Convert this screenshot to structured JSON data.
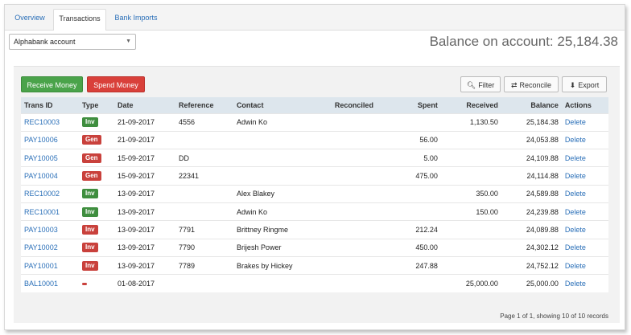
{
  "tabs": [
    {
      "label": "Overview",
      "active": false
    },
    {
      "label": "Transactions",
      "active": true
    },
    {
      "label": "Bank Imports",
      "active": false
    }
  ],
  "account_select": {
    "value": "Alphabank account"
  },
  "balance_text": "Balance on account: 25,184.38",
  "buttons": {
    "receive": "Receive Money",
    "spend": "Spend Money",
    "filter": "Filter",
    "reconcile": "Reconcile",
    "export": "Export"
  },
  "table": {
    "headers": {
      "trans_id": "Trans ID",
      "type": "Type",
      "date": "Date",
      "reference": "Reference",
      "contact": "Contact",
      "reconciled": "Reconciled",
      "spent": "Spent",
      "received": "Received",
      "balance": "Balance",
      "actions": "Actions"
    },
    "rows": [
      {
        "id": "REC10003",
        "type": "Inv",
        "type_class": "inv",
        "date": "21-09-2017",
        "reference": "4556",
        "contact": "Adwin Ko",
        "reconciled": "",
        "spent": "",
        "received": "1,130.50",
        "balance": "25,184.38",
        "action": "Delete"
      },
      {
        "id": "PAY10006",
        "type": "Gen",
        "type_class": "gen",
        "date": "21-09-2017",
        "reference": "",
        "contact": "",
        "reconciled": "",
        "spent": "56.00",
        "received": "",
        "balance": "24,053.88",
        "action": "Delete"
      },
      {
        "id": "PAY10005",
        "type": "Gen",
        "type_class": "gen",
        "date": "15-09-2017",
        "reference": "DD",
        "contact": "",
        "reconciled": "",
        "spent": "5.00",
        "received": "",
        "balance": "24,109.88",
        "action": "Delete"
      },
      {
        "id": "PAY10004",
        "type": "Gen",
        "type_class": "gen",
        "date": "15-09-2017",
        "reference": "22341",
        "contact": "",
        "reconciled": "",
        "spent": "475.00",
        "received": "",
        "balance": "24,114.88",
        "action": "Delete"
      },
      {
        "id": "REC10002",
        "type": "Inv",
        "type_class": "inv",
        "date": "13-09-2017",
        "reference": "",
        "contact": "Alex Blakey",
        "reconciled": "",
        "spent": "",
        "received": "350.00",
        "balance": "24,589.88",
        "action": "Delete"
      },
      {
        "id": "REC10001",
        "type": "Inv",
        "type_class": "inv",
        "date": "13-09-2017",
        "reference": "",
        "contact": "Adwin Ko",
        "reconciled": "",
        "spent": "",
        "received": "150.00",
        "balance": "24,239.88",
        "action": "Delete"
      },
      {
        "id": "PAY10003",
        "type": "Inv",
        "type_class": "gen",
        "date": "13-09-2017",
        "reference": "7791",
        "contact": "Brittney Ringme",
        "reconciled": "",
        "spent": "212.24",
        "received": "",
        "balance": "24,089.88",
        "action": "Delete"
      },
      {
        "id": "PAY10002",
        "type": "Inv",
        "type_class": "gen",
        "date": "13-09-2017",
        "reference": "7790",
        "contact": "Brijesh Power",
        "reconciled": "",
        "spent": "450.00",
        "received": "",
        "balance": "24,302.12",
        "action": "Delete"
      },
      {
        "id": "PAY10001",
        "type": "Inv",
        "type_class": "gen",
        "date": "13-09-2017",
        "reference": "7789",
        "contact": "Brakes by Hickey",
        "reconciled": "",
        "spent": "247.88",
        "received": "",
        "balance": "24,752.12",
        "action": "Delete"
      },
      {
        "id": "BAL10001",
        "type": "",
        "type_class": "bal",
        "date": "01-08-2017",
        "reference": "",
        "contact": "",
        "reconciled": "",
        "spent": "",
        "received": "25,000.00",
        "balance": "25,000.00",
        "action": "Delete"
      }
    ]
  },
  "pagination_text": "Page 1 of 1, showing 10 of 10 records",
  "icons": {
    "filter": "search-icon",
    "reconcile": "refresh-icon",
    "export": "download-icon",
    "select": "caret-down-icon"
  },
  "colors": {
    "link": "#2a6fb8",
    "receive": "#4aa34a",
    "spend": "#d9403a",
    "inv_badge": "#3f8e3f",
    "gen_badge": "#c9413c",
    "table_header": "#dde6ed"
  }
}
